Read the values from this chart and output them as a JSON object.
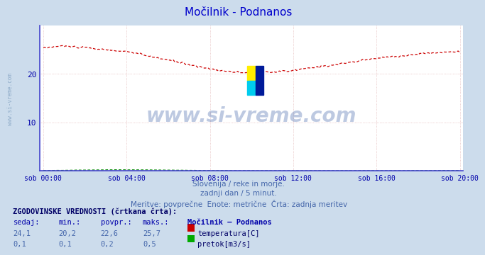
{
  "title": "Močilnik - Podnanos",
  "title_color": "#0000cc",
  "bg_color": "#ccdcec",
  "plot_bg_color": "#ffffff",
  "grid_color": "#ddaaaa",
  "x_label_color": "#0000aa",
  "y_label_color": "#0000aa",
  "left_spine_color": "#4444cc",
  "bottom_spine_color": "#4444cc",
  "right_arrow_color": "#cc0000",
  "watermark_text": "www.si-vreme.com",
  "watermark_color": "#4466aa",
  "watermark_alpha": 0.35,
  "subtitle_lines": [
    "Slovenija / reke in morje.",
    "zadnji dan / 5 minut.",
    "Meritve: povprečne  Enote: metrične  Črta: zadnja meritev"
  ],
  "subtitle_color": "#4466aa",
  "table_header": "ZGODOVINSKE VREDNOSTI (črtkana črta):",
  "table_cols": [
    "sedaj:",
    "min.:",
    "povpr.:",
    "maks.:"
  ],
  "table_station": "Močilnik – Podnanos",
  "table_rows": [
    {
      "values": [
        "24,1",
        "20,2",
        "22,6",
        "25,7"
      ],
      "label": "temperatura[C]",
      "color": "#cc0000"
    },
    {
      "values": [
        "0,1",
        "0,1",
        "0,2",
        "0,5"
      ],
      "label": "pretok[m3/s]",
      "color": "#00aa00"
    }
  ],
  "temp_color": "#cc0000",
  "flow_color": "#008800",
  "ylim": [
    0,
    30
  ],
  "yticks": [
    10,
    20
  ],
  "x_tick_labels": [
    "sob 00:00",
    "sob 04:00",
    "sob 08:00",
    "sob 12:00",
    "sob 16:00",
    "sob 20:00"
  ],
  "x_tick_positions": [
    0,
    48,
    96,
    144,
    192,
    240
  ],
  "n_points": 241,
  "logo_colors": [
    "#ffee00",
    "#00ccee",
    "#001a99"
  ],
  "sidebar_text": "www.si-vreme.com",
  "sidebar_color": "#7799bb"
}
